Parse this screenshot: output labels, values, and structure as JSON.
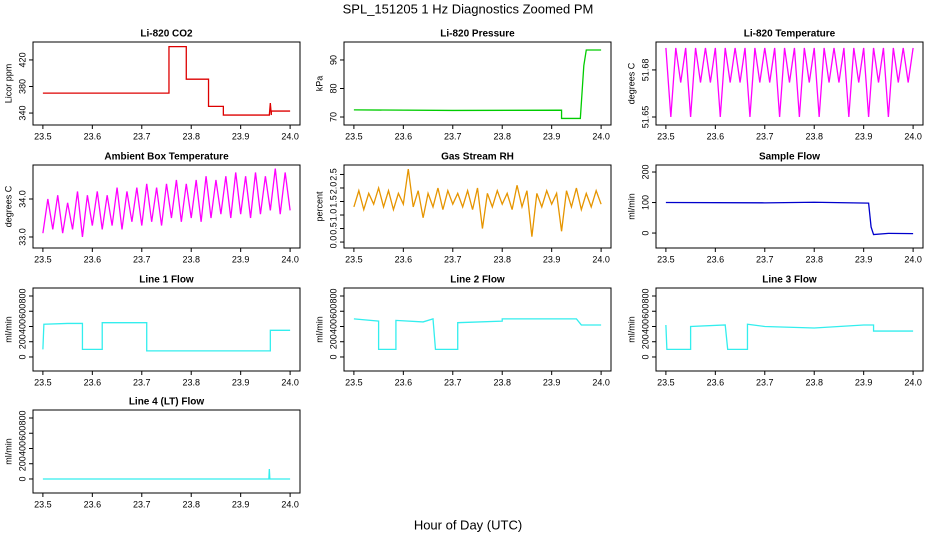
{
  "title": "SPL_151205  1 Hz Diagnostics Zoomed PM",
  "xlabel": "Hour of Day (UTC)",
  "chart_data": [
    {
      "type": "line",
      "title": "Li-820 CO2",
      "ylabel": "Licor ppm",
      "color": "#dd0000",
      "x": [
        23.5,
        23.755,
        23.755,
        23.79,
        23.79,
        23.835,
        23.835,
        23.865,
        23.865,
        23.958,
        23.96,
        23.962,
        23.962,
        24.0
      ],
      "values": [
        370,
        370,
        440,
        440,
        391,
        391,
        350,
        350,
        337,
        337,
        355,
        337,
        343,
        343
      ],
      "xlim": [
        23.48,
        24.02
      ],
      "xticks": [
        23.5,
        23.6,
        23.7,
        23.8,
        23.9,
        {
          "value": 24,
          "label": "24.0"
        }
      ],
      "ylim": [
        322,
        447
      ],
      "yticks": [
        340,
        380,
        420
      ]
    },
    {
      "type": "line",
      "title": "Li-820 Pressure",
      "ylabel": "kPa",
      "color": "#00cc00",
      "x": [
        23.5,
        23.7,
        23.92,
        23.92,
        23.958,
        23.965,
        23.97,
        24.0
      ],
      "values": [
        72.5,
        72.3,
        72.4,
        69.5,
        69.5,
        88,
        93.5,
        93.5
      ],
      "xlim": [
        23.48,
        24.02
      ],
      "xticks": [
        23.5,
        23.6,
        23.7,
        23.8,
        23.9,
        {
          "value": 24,
          "label": "24.0"
        }
      ],
      "ylim": [
        67.2,
        96.3
      ],
      "yticks": [
        70,
        80,
        90
      ]
    },
    {
      "type": "line",
      "title": "Li-820 Temperature",
      "ylabel": "degrees C",
      "color": "#ff00ff",
      "x": [
        23.5,
        23.51,
        23.52,
        23.53,
        23.54,
        23.55,
        23.56,
        23.57,
        23.58,
        23.59,
        23.6,
        23.61,
        23.62,
        23.63,
        23.64,
        23.65,
        23.66,
        23.67,
        23.68,
        23.69,
        23.7,
        23.71,
        23.72,
        23.73,
        23.74,
        23.75,
        23.76,
        23.77,
        23.78,
        23.79,
        23.8,
        23.81,
        23.82,
        23.83,
        23.84,
        23.85,
        23.86,
        23.87,
        23.88,
        23.89,
        23.9,
        23.91,
        23.92,
        23.93,
        23.94,
        23.95,
        23.96,
        23.97,
        23.98,
        23.99,
        24.0
      ],
      "values": [
        51.694,
        51.65,
        51.694,
        51.672,
        51.694,
        51.65,
        51.694,
        51.672,
        51.694,
        51.672,
        51.694,
        51.65,
        51.694,
        51.672,
        51.694,
        51.672,
        51.694,
        51.65,
        51.694,
        51.672,
        51.694,
        51.672,
        51.694,
        51.65,
        51.694,
        51.672,
        51.694,
        51.65,
        51.694,
        51.672,
        51.694,
        51.65,
        51.694,
        51.672,
        51.694,
        51.672,
        51.694,
        51.65,
        51.694,
        51.672,
        51.694,
        51.65,
        51.694,
        51.672,
        51.694,
        51.65,
        51.694,
        51.672,
        51.694,
        51.672,
        51.694
      ],
      "xlim": [
        23.48,
        24.02
      ],
      "xticks": [
        23.5,
        23.6,
        23.7,
        23.8,
        23.9,
        {
          "value": 24,
          "label": "24.0"
        }
      ],
      "ylim": [
        51.6449,
        51.6978
      ],
      "yticks": [
        51.65,
        51.68
      ]
    },
    {
      "type": "line",
      "title": "Ambient Box Temperature",
      "ylabel": "degrees C",
      "color": "#ff00ff",
      "x": [
        23.5,
        23.51,
        23.52,
        23.53,
        23.54,
        23.55,
        23.56,
        23.57,
        23.58,
        23.59,
        23.6,
        23.61,
        23.62,
        23.63,
        23.64,
        23.65,
        23.66,
        23.67,
        23.68,
        23.69,
        23.7,
        23.71,
        23.72,
        23.73,
        23.74,
        23.75,
        23.76,
        23.77,
        23.78,
        23.79,
        23.8,
        23.81,
        23.82,
        23.83,
        23.84,
        23.85,
        23.86,
        23.87,
        23.88,
        23.89,
        23.9,
        23.91,
        23.92,
        23.93,
        23.94,
        23.95,
        23.96,
        23.97,
        23.98,
        23.99,
        24.0
      ],
      "values": [
        33.1,
        34.0,
        33.2,
        34.1,
        33.1,
        33.9,
        33.2,
        34.2,
        33.0,
        34.1,
        33.3,
        34.2,
        33.2,
        34.1,
        33.3,
        34.3,
        33.2,
        34.2,
        33.4,
        34.3,
        33.3,
        34.4,
        33.4,
        34.3,
        33.3,
        34.4,
        33.5,
        34.5,
        33.4,
        34.4,
        33.5,
        34.5,
        33.4,
        34.6,
        33.5,
        34.5,
        33.6,
        34.6,
        33.5,
        34.7,
        33.6,
        34.6,
        33.5,
        34.7,
        33.6,
        34.6,
        33.7,
        34.8,
        33.6,
        34.7,
        33.7
      ],
      "xlim": [
        23.48,
        24.02
      ],
      "xticks": [
        23.5,
        23.6,
        23.7,
        23.8,
        23.9,
        {
          "value": 24,
          "label": "24.0"
        }
      ],
      "ylim": [
        32.71,
        34.895
      ],
      "yticks": [
        {
          "value": 33,
          "label": "33.0"
        },
        {
          "value": 34,
          "label": "34.0"
        }
      ]
    },
    {
      "type": "line",
      "title": "Gas Stream RH",
      "ylabel": "percent",
      "color": "#e69500",
      "x": [
        23.5,
        23.51,
        23.52,
        23.53,
        23.54,
        23.55,
        23.56,
        23.57,
        23.58,
        23.59,
        23.6,
        23.61,
        23.62,
        23.63,
        23.64,
        23.65,
        23.66,
        23.67,
        23.68,
        23.69,
        23.7,
        23.71,
        23.72,
        23.73,
        23.74,
        23.75,
        23.76,
        23.77,
        23.78,
        23.79,
        23.8,
        23.81,
        23.82,
        23.83,
        23.84,
        23.85,
        23.86,
        23.87,
        23.88,
        23.89,
        23.9,
        23.91,
        23.92,
        23.93,
        23.94,
        23.95,
        23.96,
        23.97,
        23.98,
        23.99,
        24.0
      ],
      "values": [
        1.3,
        1.9,
        1.2,
        1.8,
        1.4,
        2.0,
        1.3,
        1.9,
        1.2,
        1.8,
        1.4,
        2.7,
        1.3,
        1.9,
        0.9,
        1.8,
        1.3,
        2.0,
        1.2,
        1.9,
        1.4,
        1.8,
        1.3,
        1.9,
        1.2,
        2.0,
        0.5,
        1.8,
        1.3,
        1.9,
        1.4,
        1.8,
        1.2,
        2.1,
        1.3,
        1.9,
        0.2,
        1.8,
        1.3,
        1.9,
        1.4,
        1.8,
        0.4,
        1.9,
        1.3,
        2.0,
        1.2,
        1.8,
        1.3,
        1.9,
        1.4
      ],
      "xlim": [
        23.48,
        24.02
      ],
      "xticks": [
        23.5,
        23.6,
        23.7,
        23.8,
        23.9,
        {
          "value": 24,
          "label": "24.0"
        }
      ],
      "ylim": [
        -0.22,
        2.85
      ],
      "yticks": [
        {
          "value": 0,
          "label": "0.0"
        },
        {
          "value": 0.5,
          "label": "0.5"
        },
        {
          "value": 1,
          "label": "1.0"
        },
        {
          "value": 1.5,
          "label": "1.5"
        },
        {
          "value": 2,
          "label": "2.0"
        },
        {
          "value": 2.5,
          "label": "2.5"
        }
      ]
    },
    {
      "type": "line",
      "title": "Sample Flow",
      "ylabel": "ml/min",
      "color": "#0000cc",
      "x": [
        23.5,
        23.7,
        23.8,
        23.91,
        23.915,
        23.92,
        23.95,
        24.0
      ],
      "values": [
        100,
        99,
        101,
        98,
        20,
        -5,
        -1,
        -2
      ],
      "xlim": [
        23.48,
        24.02
      ],
      "xticks": [
        23.5,
        23.6,
        23.7,
        23.8,
        23.9,
        {
          "value": 24,
          "label": "24.0"
        }
      ],
      "ylim": [
        -49,
        223
      ],
      "yticks": [
        0,
        100,
        200
      ]
    },
    {
      "type": "line",
      "title": "Line 1 Flow",
      "ylabel": "ml/min",
      "color": "#33eeee",
      "x": [
        23.5,
        23.502,
        23.55,
        23.58,
        23.58,
        23.62,
        23.62,
        23.71,
        23.71,
        23.96,
        23.96,
        24.0
      ],
      "values": [
        100,
        430,
        440,
        440,
        100,
        100,
        450,
        450,
        80,
        80,
        350,
        350
      ],
      "xlim": [
        23.48,
        24.02
      ],
      "xticks": [
        23.5,
        23.6,
        23.7,
        23.8,
        23.9,
        {
          "value": 24,
          "label": "24.0"
        }
      ],
      "ylim": [
        -184,
        905
      ],
      "yticks": [
        0,
        200,
        400,
        600,
        800
      ]
    },
    {
      "type": "line",
      "title": "Line 2 Flow",
      "ylabel": "ml/min",
      "color": "#33eeee",
      "x": [
        23.5,
        23.55,
        23.55,
        23.585,
        23.585,
        23.64,
        23.66,
        23.665,
        23.71,
        23.71,
        23.8,
        23.8,
        23.95,
        23.96,
        24.0
      ],
      "values": [
        500,
        470,
        100,
        100,
        480,
        460,
        500,
        100,
        100,
        450,
        470,
        500,
        500,
        420,
        420
      ],
      "xlim": [
        23.48,
        24.02
      ],
      "xticks": [
        23.5,
        23.6,
        23.7,
        23.8,
        23.9,
        {
          "value": 24,
          "label": "24.0"
        }
      ],
      "ylim": [
        -184,
        905
      ],
      "yticks": [
        0,
        200,
        400,
        600,
        800
      ]
    },
    {
      "type": "line",
      "title": "Line 3 Flow",
      "ylabel": "ml/min",
      "color": "#33eeee",
      "x": [
        23.5,
        23.502,
        23.55,
        23.55,
        23.62,
        23.625,
        23.665,
        23.665,
        23.7,
        23.8,
        23.9,
        23.92,
        23.92,
        24.0
      ],
      "values": [
        420,
        100,
        100,
        400,
        420,
        100,
        100,
        430,
        400,
        380,
        420,
        420,
        340,
        340
      ],
      "xlim": [
        23.48,
        24.02
      ],
      "xticks": [
        23.5,
        23.6,
        23.7,
        23.8,
        23.9,
        {
          "value": 24,
          "label": "24.0"
        }
      ],
      "ylim": [
        -184,
        905
      ],
      "yticks": [
        0,
        200,
        400,
        600,
        800
      ]
    },
    {
      "type": "line",
      "title": "Line 4 (LT) Flow",
      "ylabel": "ml/min",
      "color": "#33eeee",
      "x": [
        23.5,
        23.7,
        23.957,
        23.958,
        23.959,
        24.0
      ],
      "values": [
        0,
        0,
        0,
        130,
        0,
        0
      ],
      "xlim": [
        23.48,
        24.02
      ],
      "xticks": [
        23.5,
        23.6,
        23.7,
        23.8,
        23.9,
        {
          "value": 24,
          "label": "24.0"
        }
      ],
      "ylim": [
        -184,
        905
      ],
      "yticks": [
        0,
        200,
        400,
        600,
        800
      ]
    }
  ]
}
